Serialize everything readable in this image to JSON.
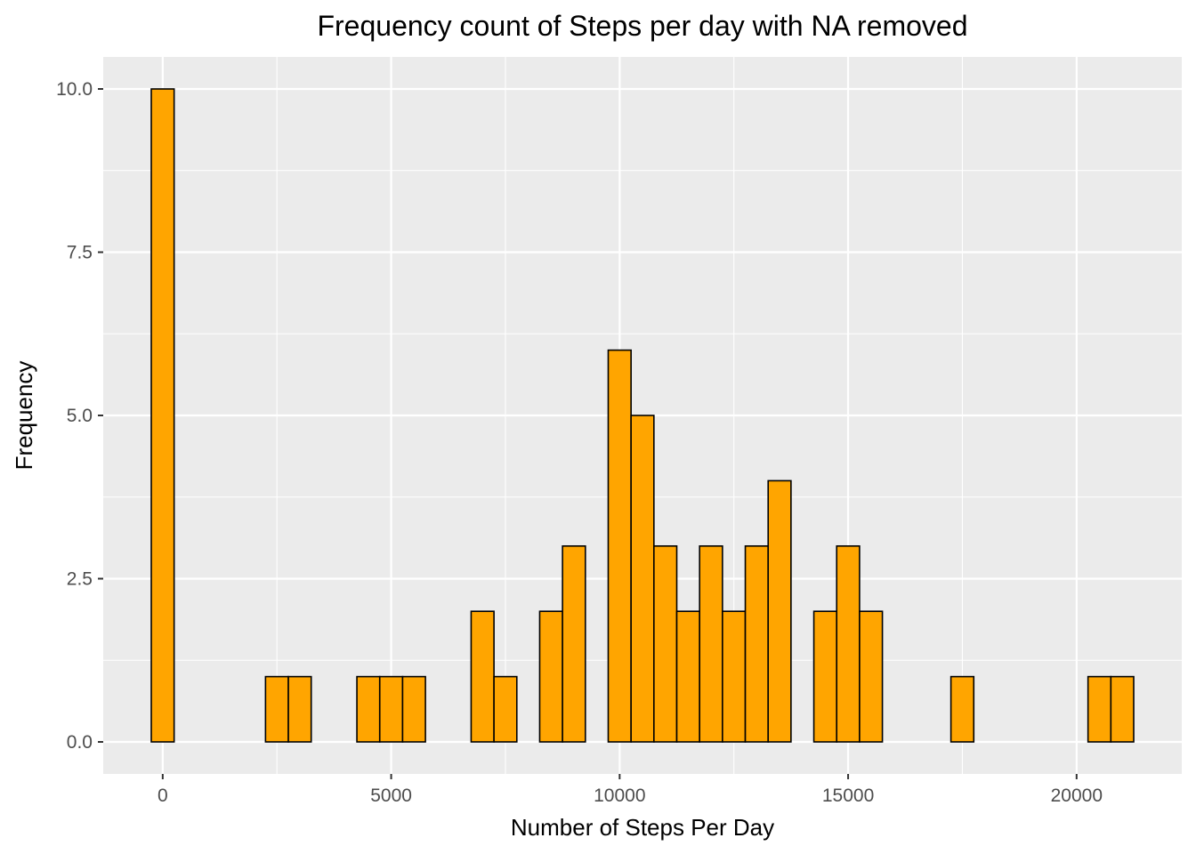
{
  "chart_data": {
    "type": "bar",
    "subtype": "histogram",
    "title": "Frequency count of Steps per day with NA removed",
    "xlabel": "Number of Steps Per Day",
    "ylabel": "Frequency",
    "binwidth": 500,
    "bin_centers": [
      0,
      2500,
      3000,
      4500,
      5000,
      5500,
      7000,
      7500,
      8500,
      9000,
      10000,
      10500,
      11000,
      11500,
      12000,
      12500,
      13000,
      13500,
      14500,
      15000,
      15500,
      17500,
      20500,
      21000
    ],
    "values": [
      10,
      1,
      1,
      1,
      1,
      1,
      2,
      1,
      2,
      3,
      6,
      5,
      3,
      2,
      3,
      2,
      3,
      4,
      2,
      3,
      2,
      1,
      1,
      1
    ],
    "xlim": [
      -250,
      21250
    ],
    "ylim": [
      0,
      10
    ],
    "x_ticks": [
      0,
      5000,
      10000,
      15000,
      20000
    ],
    "x_tick_labels": [
      "0",
      "5000",
      "10000",
      "15000",
      "20000"
    ],
    "y_ticks": [
      0,
      2.5,
      5,
      7.5,
      10
    ],
    "y_tick_labels": [
      "0.0",
      "2.5",
      "5.0",
      "7.5",
      "10.0"
    ],
    "grid": true,
    "bar_fill": "#ffa500",
    "bar_stroke": "#000000",
    "panel_background": "#ebebeb",
    "grid_color": "#ffffff"
  }
}
